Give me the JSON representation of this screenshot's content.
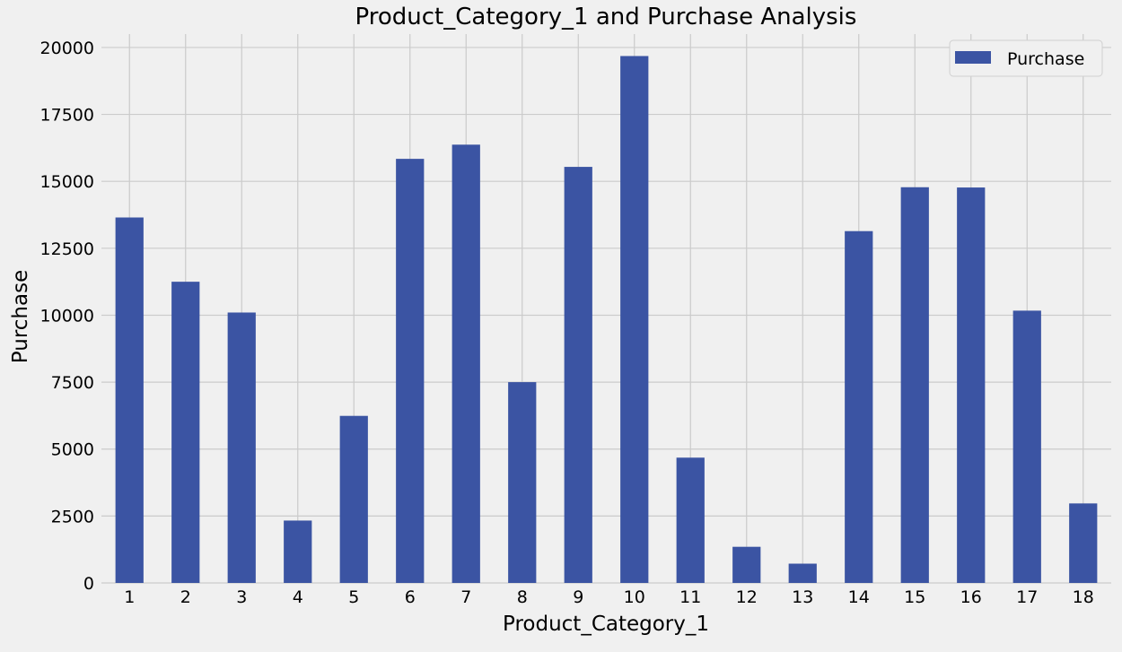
{
  "chart_data": {
    "type": "bar",
    "title": "Product_Category_1 and Purchase Analysis",
    "xlabel": "Product_Category_1",
    "ylabel": "Purchase",
    "categories": [
      "1",
      "2",
      "3",
      "4",
      "5",
      "6",
      "7",
      "8",
      "9",
      "10",
      "11",
      "12",
      "13",
      "14",
      "15",
      "16",
      "17",
      "18"
    ],
    "series": [
      {
        "name": "Purchase",
        "color": "#3b54a3",
        "values": [
          13650,
          11250,
          10100,
          2330,
          6240,
          15840,
          16370,
          7500,
          15540,
          19680,
          4680,
          1350,
          720,
          13140,
          14780,
          14770,
          10170,
          2970
        ]
      }
    ],
    "ylim": [
      0,
      20500
    ],
    "yticks": [
      "0",
      "2500",
      "5000",
      "7500",
      "10000",
      "12500",
      "15000",
      "17500",
      "20000"
    ],
    "grid": true,
    "legend_position": "top-right"
  }
}
